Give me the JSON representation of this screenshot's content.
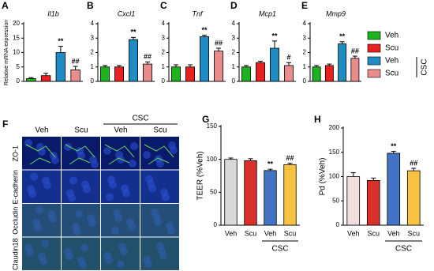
{
  "chart_data": [
    {
      "type": "bar",
      "panel": "A",
      "title": "Il1b",
      "y_label": "Relative mRNA expression",
      "values": [
        1,
        2,
        10,
        4
      ],
      "errors": [
        0.3,
        0.8,
        2.2,
        1.2
      ],
      "colors": [
        "#1db31d",
        "#e82020",
        "#1e8bc3",
        "#e88c8c"
      ],
      "annotations": [
        null,
        null,
        "**",
        "##"
      ],
      "ylim": [
        0,
        20
      ],
      "yticks": [
        0,
        5,
        10,
        15,
        20
      ]
    },
    {
      "type": "bar",
      "panel": "B",
      "title": "Cxcl1",
      "values": [
        1,
        1,
        2.9,
        1.2
      ],
      "errors": [
        0.1,
        0.1,
        0.15,
        0.15
      ],
      "colors": [
        "#1db31d",
        "#e82020",
        "#1e8bc3",
        "#e88c8c"
      ],
      "annotations": [
        null,
        null,
        "**",
        "##"
      ],
      "ylim": [
        0,
        4
      ],
      "yticks": [
        0,
        1,
        2,
        3,
        4
      ]
    },
    {
      "type": "bar",
      "panel": "C",
      "title": "Tnf",
      "values": [
        1,
        1,
        3.1,
        2.1
      ],
      "errors": [
        0.15,
        0.15,
        0.1,
        0.2
      ],
      "colors": [
        "#1db31d",
        "#e82020",
        "#1e8bc3",
        "#e88c8c"
      ],
      "annotations": [
        null,
        null,
        "**",
        "##"
      ],
      "ylim": [
        0,
        4
      ],
      "yticks": [
        0,
        1,
        2,
        3,
        4
      ]
    },
    {
      "type": "bar",
      "panel": "D",
      "title": "Mcp1",
      "values": [
        1,
        1.3,
        2.3,
        1.1
      ],
      "errors": [
        0.1,
        0.1,
        0.5,
        0.2
      ],
      "colors": [
        "#1db31d",
        "#e82020",
        "#1e8bc3",
        "#e88c8c"
      ],
      "annotations": [
        null,
        null,
        "**",
        "#"
      ],
      "ylim": [
        0,
        4
      ],
      "yticks": [
        0,
        1,
        2,
        3,
        4
      ]
    },
    {
      "type": "bar",
      "panel": "E",
      "title": "Mmp9",
      "values": [
        1,
        1.1,
        2.6,
        1.6
      ],
      "errors": [
        0.1,
        0.1,
        0.15,
        0.15
      ],
      "colors": [
        "#1db31d",
        "#e82020",
        "#1e8bc3",
        "#e88c8c"
      ],
      "annotations": [
        null,
        null,
        "**",
        "##"
      ],
      "ylim": [
        0,
        4
      ],
      "yticks": [
        0,
        1,
        2,
        3,
        4
      ]
    },
    {
      "type": "bar",
      "panel": "G",
      "y_label": "TEER (%Veh)",
      "categories": [
        "Veh",
        "Scu",
        "Veh",
        "Scu"
      ],
      "group": "CSC",
      "values": [
        100,
        98,
        83,
        92
      ],
      "errors": [
        2,
        3,
        2,
        2
      ],
      "colors": [
        "#d9d9d9",
        "#d9302c",
        "#4472c4",
        "#f5c242"
      ],
      "annotations": [
        null,
        null,
        "**",
        "##"
      ],
      "ylim": [
        0,
        150
      ],
      "yticks": [
        0,
        50,
        100,
        150
      ]
    },
    {
      "type": "bar",
      "panel": "H",
      "y_label": "Pd (%Veh)",
      "categories": [
        "Veh",
        "Scu",
        "Veh",
        "Scu"
      ],
      "group": "CSC",
      "values": [
        100,
        92,
        148,
        112
      ],
      "errors": [
        8,
        5,
        4,
        5
      ],
      "colors": [
        "#f2dede",
        "#d9302c",
        "#4472c4",
        "#f5c242"
      ],
      "annotations": [
        null,
        null,
        "**",
        "##"
      ],
      "ylim": [
        0,
        200
      ],
      "yticks": [
        0,
        50,
        100,
        150,
        200
      ]
    }
  ],
  "legend": {
    "items": [
      {
        "name": "Veh",
        "color": "#1db31d"
      },
      {
        "name": "Scu",
        "color": "#e82020"
      },
      {
        "name": "Veh",
        "color": "#1e8bc3"
      },
      {
        "name": "Scu",
        "color": "#e88c8c"
      }
    ],
    "group": "CSC"
  },
  "image_panel": {
    "panel": "F",
    "columns": [
      "Veh",
      "Scu",
      "Veh",
      "Scu"
    ],
    "group": "CSC",
    "rows": [
      "ZO-1",
      "E-cadherin",
      "Occludin",
      "Claudin18"
    ]
  }
}
